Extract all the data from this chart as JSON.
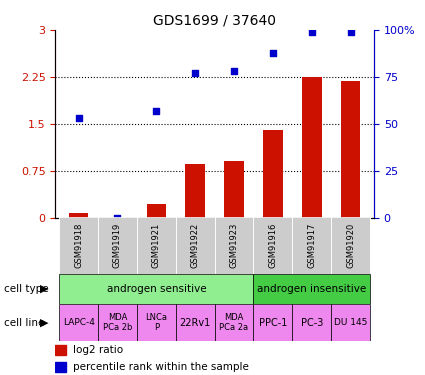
{
  "title": "GDS1699 / 37640",
  "samples": [
    "GSM91918",
    "GSM91919",
    "GSM91921",
    "GSM91922",
    "GSM91923",
    "GSM91916",
    "GSM91917",
    "GSM91920"
  ],
  "log2_ratio": [
    0.08,
    0.0,
    0.22,
    0.85,
    0.9,
    1.4,
    2.25,
    2.18
  ],
  "percentile_rank": [
    53,
    0,
    57,
    77,
    78,
    88,
    99,
    99
  ],
  "bar_color": "#cc1100",
  "dot_color": "#0000cc",
  "yticks_left": [
    0,
    0.75,
    1.5,
    2.25,
    3
  ],
  "yticks_right": [
    0,
    25,
    50,
    75,
    100
  ],
  "ylim_left": [
    0,
    3
  ],
  "ylim_right": [
    0,
    100
  ],
  "cell_type_sensitive": "androgen sensitive",
  "cell_type_insensitive": "androgen insensitive",
  "cell_line_labels": [
    "LAPC-4",
    "MDA\nPCa 2b",
    "LNCa\nP",
    "22Rv1",
    "MDA\nPCa 2a",
    "PPC-1",
    "PC-3",
    "DU 145"
  ],
  "cell_line_fontsize": [
    6.5,
    6,
    6,
    7,
    6,
    7,
    7,
    6.5
  ],
  "sensitive_bg": "#90ee90",
  "insensitive_bg": "#44cc44",
  "cell_line_bg": "#ee88ee",
  "gsm_bg": "#cccccc",
  "legend_red_label": "log2 ratio",
  "legend_blue_label": "percentile rank within the sample",
  "ylabel_left_color": "#cc1100",
  "ylabel_right_color": "#0000cc"
}
